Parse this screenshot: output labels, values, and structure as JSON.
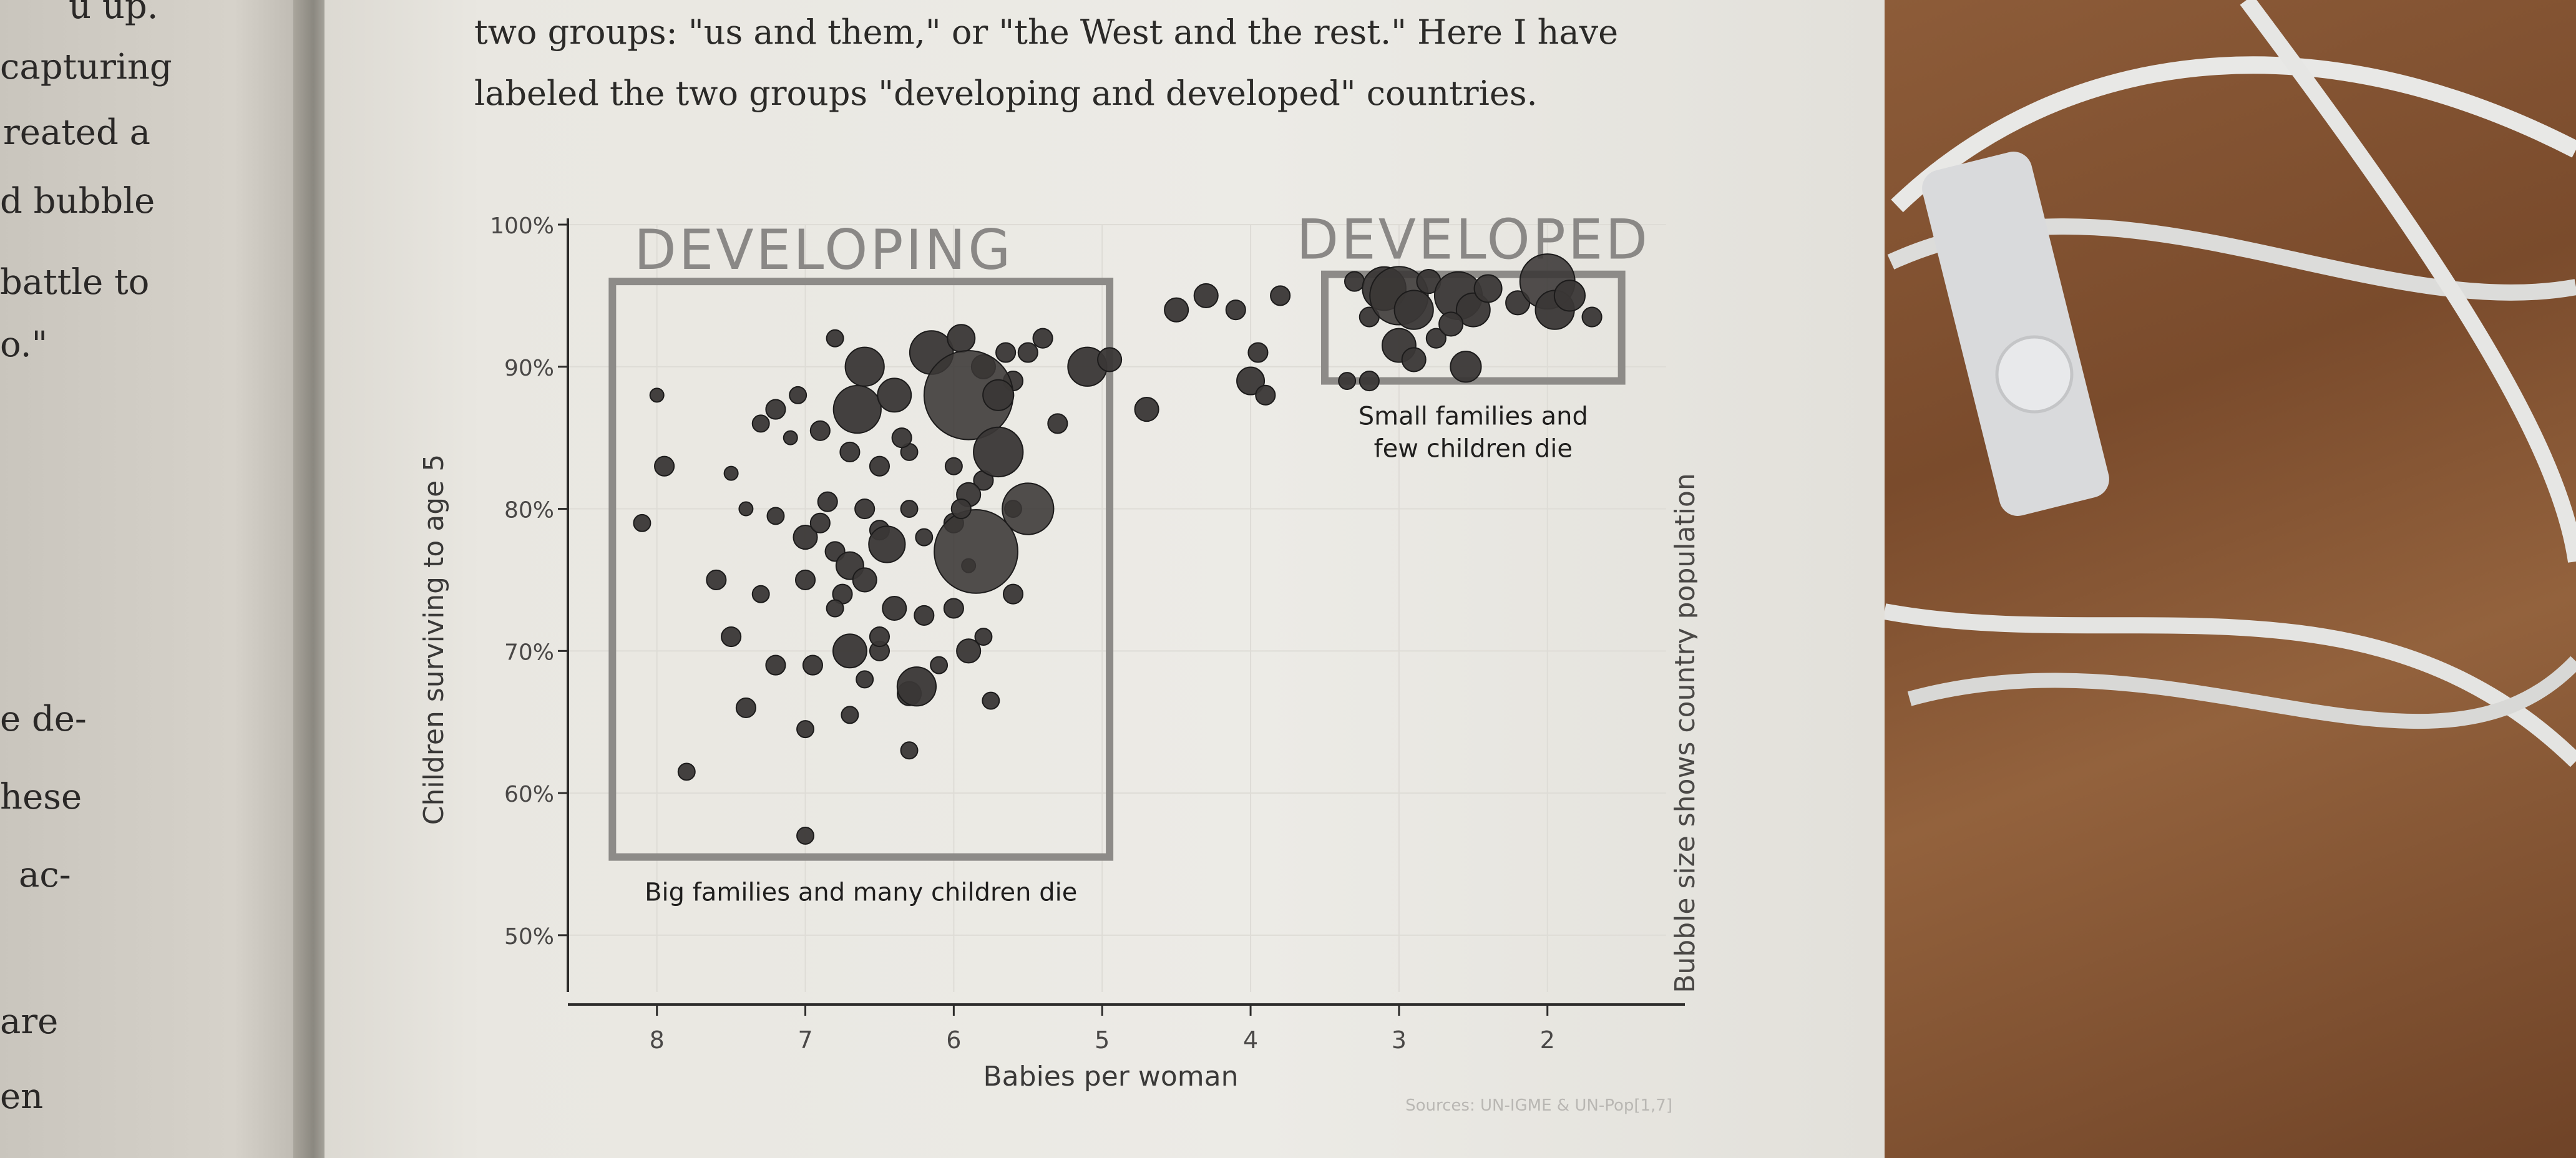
{
  "left_page": {
    "fragments": [
      "u up.",
      "capturing",
      "reated a",
      "d bubble",
      "battle to",
      "o.\"",
      "e de-",
      "hese",
      "ac-",
      "are",
      "en"
    ]
  },
  "prose": {
    "line1": "two groups: \"us and them,\" or \"the West and the rest.\" Here I have",
    "line2": "labeled the two groups \"developing and developed\" countries."
  },
  "chart_data": {
    "type": "scatter",
    "xlabel": "Babies per woman",
    "ylabel": "Children surviving to age 5",
    "side_label": "Bubble size shows country population",
    "source": "Sources: UN-IGME & UN-Pop[1,7]",
    "x_ticks": [
      "8",
      "7",
      "6",
      "5",
      "4",
      "3",
      "2"
    ],
    "y_ticks": [
      "50%",
      "60%",
      "70%",
      "80%",
      "90%",
      "100%"
    ],
    "xlim": [
      8.6,
      1.2
    ],
    "ylim": [
      46,
      100
    ],
    "x_reversed": true,
    "groups": [
      {
        "title": "DEVELOPING",
        "caption": "Big families and many children die",
        "x_range": [
          8.3,
          4.95
        ],
        "y_range": [
          55.5,
          96
        ]
      },
      {
        "title": "DEVELOPED",
        "caption": "Small families and few children die",
        "x_range": [
          3.5,
          1.5
        ],
        "y_range": [
          89,
          96.5
        ]
      }
    ],
    "points": [
      [
        8.0,
        88,
        1
      ],
      [
        7.95,
        83,
        2
      ],
      [
        8.1,
        79,
        1.5
      ],
      [
        7.6,
        75,
        2
      ],
      [
        7.5,
        71,
        2
      ],
      [
        7.4,
        66,
        2
      ],
      [
        7.8,
        61.5,
        1.5
      ],
      [
        7.0,
        57,
        1.5
      ],
      [
        7.3,
        86,
        1.5
      ],
      [
        7.1,
        85,
        1
      ],
      [
        6.9,
        85.5,
        2
      ],
      [
        6.7,
        84,
        2
      ],
      [
        6.5,
        83,
        2
      ],
      [
        6.3,
        84,
        1.5
      ],
      [
        6.0,
        83,
        1.5
      ],
      [
        5.8,
        82,
        2
      ],
      [
        5.6,
        80,
        1.5
      ],
      [
        7.2,
        79.5,
        1.5
      ],
      [
        7.0,
        78,
        3
      ],
      [
        6.8,
        77,
        2
      ],
      [
        6.7,
        76,
        4
      ],
      [
        6.6,
        75,
        3
      ],
      [
        6.5,
        78.5,
        2
      ],
      [
        6.3,
        80,
        1.5
      ],
      [
        6.2,
        78,
        1.5
      ],
      [
        6.0,
        79,
        2
      ],
      [
        6.45,
        77.5,
        7
      ],
      [
        6.6,
        80,
        2
      ],
      [
        6.85,
        80.5,
        2
      ],
      [
        6.9,
        79,
        2
      ],
      [
        7.4,
        80,
        1
      ],
      [
        7.5,
        82.5,
        1
      ],
      [
        7.3,
        74,
        1.5
      ],
      [
        7.0,
        75,
        2
      ],
      [
        6.75,
        74,
        2
      ],
      [
        6.4,
        73,
        3
      ],
      [
        6.2,
        72.5,
        2
      ],
      [
        6.0,
        73,
        2
      ],
      [
        5.8,
        71,
        1.5
      ],
      [
        5.6,
        74,
        2
      ],
      [
        6.95,
        69,
        2
      ],
      [
        6.7,
        70,
        6
      ],
      [
        6.5,
        70,
        2
      ],
      [
        6.3,
        67,
        3
      ],
      [
        6.25,
        67.5,
        8
      ],
      [
        6.1,
        69,
        1.5
      ],
      [
        5.9,
        70,
        3
      ],
      [
        5.75,
        66.5,
        1.5
      ],
      [
        5.9,
        76,
        1
      ],
      [
        6.6,
        68,
        1.5
      ],
      [
        6.5,
        71,
        2
      ],
      [
        7.2,
        69,
        2
      ],
      [
        7.0,
        64.5,
        1.5
      ],
      [
        6.7,
        65.5,
        1.5
      ],
      [
        6.3,
        63,
        1.5
      ],
      [
        6.8,
        73,
        1.5
      ],
      [
        6.65,
        87,
        12
      ],
      [
        6.6,
        90,
        8
      ],
      [
        6.4,
        88,
        6
      ],
      [
        6.15,
        91,
        10
      ],
      [
        5.95,
        92,
        4
      ],
      [
        5.8,
        90,
        3
      ],
      [
        5.6,
        89,
        2
      ],
      [
        5.5,
        91,
        2
      ],
      [
        5.4,
        92,
        2
      ],
      [
        5.3,
        86,
        2
      ],
      [
        5.1,
        90,
        8
      ],
      [
        6.35,
        85,
        2
      ],
      [
        6.8,
        92,
        1.5
      ],
      [
        7.05,
        88,
        1.5
      ],
      [
        7.2,
        87,
        2
      ],
      [
        5.9,
        88,
        42
      ],
      [
        5.7,
        88,
        5
      ],
      [
        5.7,
        84,
        13
      ],
      [
        5.65,
        91,
        2
      ],
      [
        5.85,
        77,
        37
      ],
      [
        5.5,
        80,
        14
      ],
      [
        5.9,
        81,
        3
      ],
      [
        5.95,
        80,
        2
      ],
      [
        4.95,
        90.5,
        3
      ],
      [
        4.7,
        87,
        3
      ],
      [
        4.5,
        94,
        3
      ],
      [
        4.3,
        95,
        3
      ],
      [
        4.1,
        94,
        2
      ],
      [
        4.0,
        89,
        4
      ],
      [
        3.9,
        88,
        2
      ],
      [
        3.8,
        95,
        2
      ],
      [
        3.95,
        91,
        2
      ],
      [
        3.3,
        96,
        2
      ],
      [
        3.2,
        93.5,
        2
      ],
      [
        3.1,
        95.5,
        10
      ],
      [
        3.0,
        95,
        18
      ],
      [
        2.9,
        94,
        8
      ],
      [
        2.8,
        96,
        3
      ],
      [
        2.6,
        95,
        12
      ],
      [
        2.5,
        94,
        6
      ],
      [
        2.4,
        95.5,
        4
      ],
      [
        2.2,
        94.5,
        3
      ],
      [
        2.0,
        96,
        16
      ],
      [
        1.95,
        94,
        8
      ],
      [
        1.85,
        95,
        5
      ],
      [
        1.7,
        93.5,
        2
      ],
      [
        3.0,
        91.5,
        6
      ],
      [
        2.9,
        90.5,
        3
      ],
      [
        2.75,
        92,
        2
      ],
      [
        2.55,
        90,
        5
      ],
      [
        2.65,
        93,
        3
      ],
      [
        3.2,
        89,
        2
      ],
      [
        3.35,
        89,
        1.5
      ]
    ]
  }
}
